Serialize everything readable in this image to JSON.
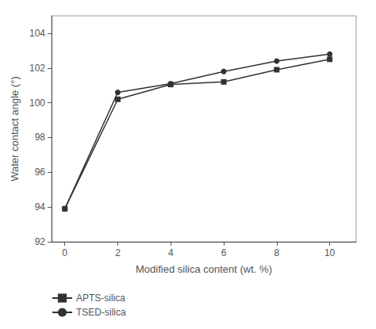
{
  "chart_data": {
    "type": "line",
    "x": [
      0,
      2,
      4,
      6,
      8,
      10
    ],
    "series": [
      {
        "name": "APTS-silica",
        "color": "#333333",
        "marker": "square",
        "values": [
          93.9,
          100.2,
          101.05,
          101.2,
          101.9,
          102.5
        ]
      },
      {
        "name": "TSED-silica",
        "color": "#333333",
        "marker": "circle",
        "values": [
          93.9,
          100.6,
          101.1,
          101.8,
          102.4,
          102.8
        ]
      }
    ],
    "xlabel": "Modified silica content (wt. %)",
    "ylabel": "Water contact angle (°)",
    "xlim": [
      -0.5,
      11.0
    ],
    "ylim": [
      92,
      105
    ],
    "xticks": [
      0,
      2,
      4,
      6,
      8,
      10
    ],
    "yticks": [
      92,
      94,
      96,
      98,
      100,
      102,
      104
    ],
    "grid": false,
    "legend": "lower left"
  }
}
